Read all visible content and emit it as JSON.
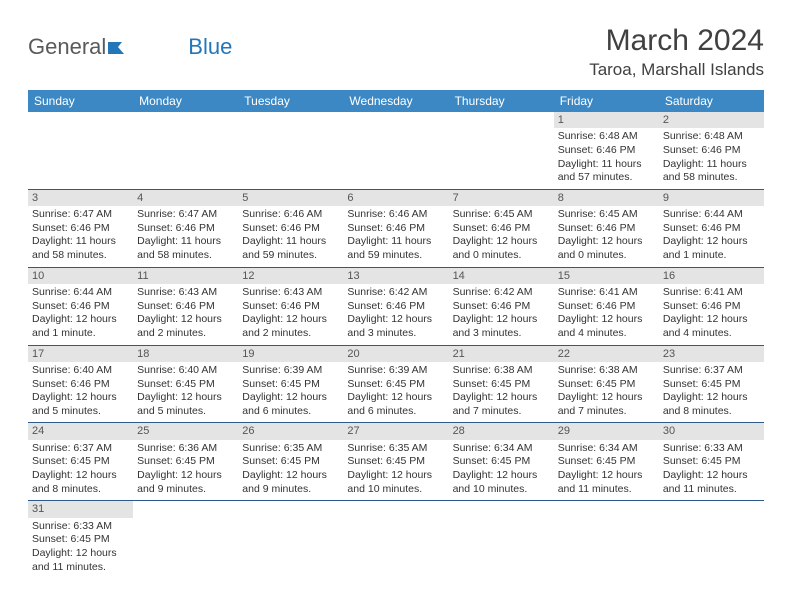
{
  "logo": {
    "text1": "General",
    "text2": "Blue"
  },
  "title": "March 2024",
  "location": "Taroa, Marshall Islands",
  "colors": {
    "header_bg": "#3b88c4",
    "header_text": "#ffffff",
    "daynum_bg": "#e4e4e4",
    "week_border": "#2d5a8a",
    "text": "#333333",
    "title_text": "#404040",
    "logo_gray": "#5a5a5a",
    "logo_blue": "#2376b8"
  },
  "dayNames": [
    "Sunday",
    "Monday",
    "Tuesday",
    "Wednesday",
    "Thursday",
    "Friday",
    "Saturday"
  ],
  "weeks": [
    [
      {
        "num": "",
        "sunrise": "",
        "sunset": "",
        "daylight": ""
      },
      {
        "num": "",
        "sunrise": "",
        "sunset": "",
        "daylight": ""
      },
      {
        "num": "",
        "sunrise": "",
        "sunset": "",
        "daylight": ""
      },
      {
        "num": "",
        "sunrise": "",
        "sunset": "",
        "daylight": ""
      },
      {
        "num": "",
        "sunrise": "",
        "sunset": "",
        "daylight": ""
      },
      {
        "num": "1",
        "sunrise": "Sunrise: 6:48 AM",
        "sunset": "Sunset: 6:46 PM",
        "daylight": "Daylight: 11 hours and 57 minutes."
      },
      {
        "num": "2",
        "sunrise": "Sunrise: 6:48 AM",
        "sunset": "Sunset: 6:46 PM",
        "daylight": "Daylight: 11 hours and 58 minutes."
      }
    ],
    [
      {
        "num": "3",
        "sunrise": "Sunrise: 6:47 AM",
        "sunset": "Sunset: 6:46 PM",
        "daylight": "Daylight: 11 hours and 58 minutes."
      },
      {
        "num": "4",
        "sunrise": "Sunrise: 6:47 AM",
        "sunset": "Sunset: 6:46 PM",
        "daylight": "Daylight: 11 hours and 58 minutes."
      },
      {
        "num": "5",
        "sunrise": "Sunrise: 6:46 AM",
        "sunset": "Sunset: 6:46 PM",
        "daylight": "Daylight: 11 hours and 59 minutes."
      },
      {
        "num": "6",
        "sunrise": "Sunrise: 6:46 AM",
        "sunset": "Sunset: 6:46 PM",
        "daylight": "Daylight: 11 hours and 59 minutes."
      },
      {
        "num": "7",
        "sunrise": "Sunrise: 6:45 AM",
        "sunset": "Sunset: 6:46 PM",
        "daylight": "Daylight: 12 hours and 0 minutes."
      },
      {
        "num": "8",
        "sunrise": "Sunrise: 6:45 AM",
        "sunset": "Sunset: 6:46 PM",
        "daylight": "Daylight: 12 hours and 0 minutes."
      },
      {
        "num": "9",
        "sunrise": "Sunrise: 6:44 AM",
        "sunset": "Sunset: 6:46 PM",
        "daylight": "Daylight: 12 hours and 1 minute."
      }
    ],
    [
      {
        "num": "10",
        "sunrise": "Sunrise: 6:44 AM",
        "sunset": "Sunset: 6:46 PM",
        "daylight": "Daylight: 12 hours and 1 minute."
      },
      {
        "num": "11",
        "sunrise": "Sunrise: 6:43 AM",
        "sunset": "Sunset: 6:46 PM",
        "daylight": "Daylight: 12 hours and 2 minutes."
      },
      {
        "num": "12",
        "sunrise": "Sunrise: 6:43 AM",
        "sunset": "Sunset: 6:46 PM",
        "daylight": "Daylight: 12 hours and 2 minutes."
      },
      {
        "num": "13",
        "sunrise": "Sunrise: 6:42 AM",
        "sunset": "Sunset: 6:46 PM",
        "daylight": "Daylight: 12 hours and 3 minutes."
      },
      {
        "num": "14",
        "sunrise": "Sunrise: 6:42 AM",
        "sunset": "Sunset: 6:46 PM",
        "daylight": "Daylight: 12 hours and 3 minutes."
      },
      {
        "num": "15",
        "sunrise": "Sunrise: 6:41 AM",
        "sunset": "Sunset: 6:46 PM",
        "daylight": "Daylight: 12 hours and 4 minutes."
      },
      {
        "num": "16",
        "sunrise": "Sunrise: 6:41 AM",
        "sunset": "Sunset: 6:46 PM",
        "daylight": "Daylight: 12 hours and 4 minutes."
      }
    ],
    [
      {
        "num": "17",
        "sunrise": "Sunrise: 6:40 AM",
        "sunset": "Sunset: 6:46 PM",
        "daylight": "Daylight: 12 hours and 5 minutes."
      },
      {
        "num": "18",
        "sunrise": "Sunrise: 6:40 AM",
        "sunset": "Sunset: 6:45 PM",
        "daylight": "Daylight: 12 hours and 5 minutes."
      },
      {
        "num": "19",
        "sunrise": "Sunrise: 6:39 AM",
        "sunset": "Sunset: 6:45 PM",
        "daylight": "Daylight: 12 hours and 6 minutes."
      },
      {
        "num": "20",
        "sunrise": "Sunrise: 6:39 AM",
        "sunset": "Sunset: 6:45 PM",
        "daylight": "Daylight: 12 hours and 6 minutes."
      },
      {
        "num": "21",
        "sunrise": "Sunrise: 6:38 AM",
        "sunset": "Sunset: 6:45 PM",
        "daylight": "Daylight: 12 hours and 7 minutes."
      },
      {
        "num": "22",
        "sunrise": "Sunrise: 6:38 AM",
        "sunset": "Sunset: 6:45 PM",
        "daylight": "Daylight: 12 hours and 7 minutes."
      },
      {
        "num": "23",
        "sunrise": "Sunrise: 6:37 AM",
        "sunset": "Sunset: 6:45 PM",
        "daylight": "Daylight: 12 hours and 8 minutes."
      }
    ],
    [
      {
        "num": "24",
        "sunrise": "Sunrise: 6:37 AM",
        "sunset": "Sunset: 6:45 PM",
        "daylight": "Daylight: 12 hours and 8 minutes."
      },
      {
        "num": "25",
        "sunrise": "Sunrise: 6:36 AM",
        "sunset": "Sunset: 6:45 PM",
        "daylight": "Daylight: 12 hours and 9 minutes."
      },
      {
        "num": "26",
        "sunrise": "Sunrise: 6:35 AM",
        "sunset": "Sunset: 6:45 PM",
        "daylight": "Daylight: 12 hours and 9 minutes."
      },
      {
        "num": "27",
        "sunrise": "Sunrise: 6:35 AM",
        "sunset": "Sunset: 6:45 PM",
        "daylight": "Daylight: 12 hours and 10 minutes."
      },
      {
        "num": "28",
        "sunrise": "Sunrise: 6:34 AM",
        "sunset": "Sunset: 6:45 PM",
        "daylight": "Daylight: 12 hours and 10 minutes."
      },
      {
        "num": "29",
        "sunrise": "Sunrise: 6:34 AM",
        "sunset": "Sunset: 6:45 PM",
        "daylight": "Daylight: 12 hours and 11 minutes."
      },
      {
        "num": "30",
        "sunrise": "Sunrise: 6:33 AM",
        "sunset": "Sunset: 6:45 PM",
        "daylight": "Daylight: 12 hours and 11 minutes."
      }
    ],
    [
      {
        "num": "31",
        "sunrise": "Sunrise: 6:33 AM",
        "sunset": "Sunset: 6:45 PM",
        "daylight": "Daylight: 12 hours and 11 minutes."
      },
      {
        "num": "",
        "sunrise": "",
        "sunset": "",
        "daylight": ""
      },
      {
        "num": "",
        "sunrise": "",
        "sunset": "",
        "daylight": ""
      },
      {
        "num": "",
        "sunrise": "",
        "sunset": "",
        "daylight": ""
      },
      {
        "num": "",
        "sunrise": "",
        "sunset": "",
        "daylight": ""
      },
      {
        "num": "",
        "sunrise": "",
        "sunset": "",
        "daylight": ""
      },
      {
        "num": "",
        "sunrise": "",
        "sunset": "",
        "daylight": ""
      }
    ]
  ]
}
